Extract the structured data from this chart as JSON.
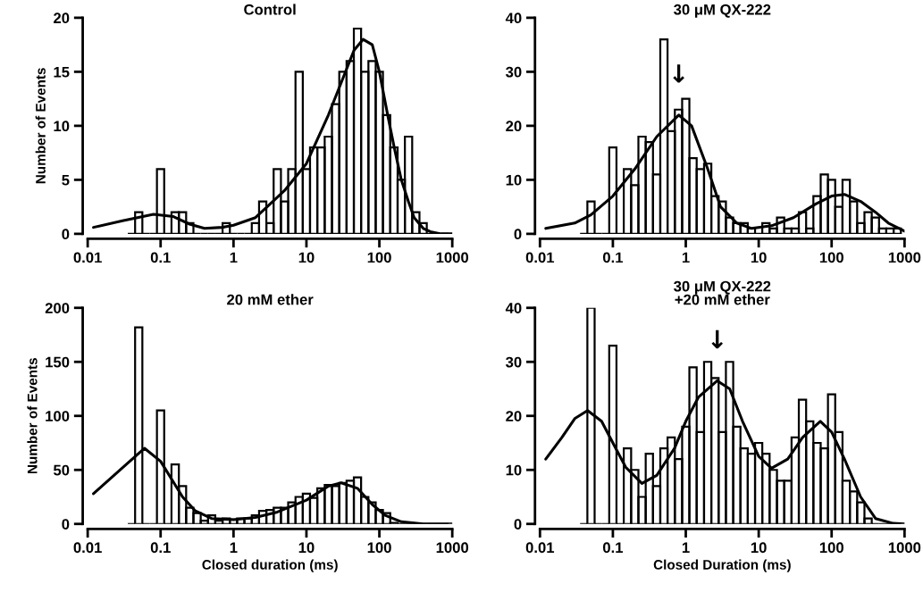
{
  "chart_data": [
    {
      "type": "histogram",
      "title": "Control",
      "ylabel": "Number of Events",
      "log": "x",
      "xlim": [
        0.01,
        1000
      ],
      "xticks": [
        0.01,
        0.1,
        1,
        10,
        100,
        1000
      ],
      "ylim": [
        0,
        20
      ],
      "yticks": [
        0,
        5,
        10,
        15,
        20
      ],
      "tick_labels": true,
      "color": "#000000",
      "bins": [
        0.0355,
        0.0447,
        0.0562,
        0.0708,
        0.0891,
        0.112,
        0.141,
        0.178,
        0.224,
        0.282,
        0.355,
        0.447,
        0.562,
        0.708,
        0.891,
        1.12,
        1.41,
        1.78,
        2.24,
        2.82,
        3.55,
        4.47,
        5.62,
        7.08,
        8.91,
        11.2,
        14.1,
        17.8,
        22.4,
        28.2,
        35.5,
        44.7,
        56.2,
        70.8,
        89.1,
        112,
        141,
        178,
        224,
        282,
        355,
        447,
        562,
        708,
        891
      ],
      "values": [
        0,
        2,
        0,
        0,
        6,
        0,
        2,
        2,
        1,
        0,
        0,
        0,
        0,
        1,
        0,
        0,
        0,
        1,
        3,
        1,
        6,
        3,
        6,
        15,
        6,
        8,
        8,
        9,
        12,
        15,
        16,
        19,
        15,
        16,
        15,
        11,
        8,
        5,
        9,
        2,
        1,
        0,
        0,
        0
      ],
      "series": [
        {
          "type": "line",
          "color": "#000000",
          "x": [
            0.012,
            0.03,
            0.08,
            0.15,
            0.25,
            0.4,
            0.7,
            1,
            2,
            3,
            5,
            10,
            20,
            30,
            45,
            60,
            80,
            100,
            130,
            160,
            200,
            250,
            300,
            400,
            500,
            700,
            1000
          ],
          "values": [
            0.6,
            1.2,
            1.8,
            1.6,
            0.9,
            0.5,
            0.6,
            0.8,
            1.5,
            2.6,
            4,
            6.5,
            11,
            14,
            17,
            18,
            17.5,
            15,
            11,
            8,
            5,
            3,
            1.5,
            0.5,
            0.2,
            0,
            0
          ]
        }
      ]
    },
    {
      "type": "histogram",
      "title": "30 μM QX-222",
      "log": "x",
      "xlim": [
        0.01,
        1000
      ],
      "xticks": [
        0.01,
        0.1,
        1,
        10,
        100,
        1000
      ],
      "ylim": [
        0,
        40
      ],
      "yticks": [
        0,
        10,
        20,
        30,
        40
      ],
      "color": "#000000",
      "annotations": [
        {
          "text": "↓",
          "x": 0.8,
          "y": 22
        }
      ],
      "bins": [
        0.0355,
        0.0447,
        0.0562,
        0.0708,
        0.0891,
        0.112,
        0.141,
        0.178,
        0.224,
        0.282,
        0.355,
        0.447,
        0.562,
        0.708,
        0.891,
        1.12,
        1.41,
        1.78,
        2.24,
        2.82,
        3.55,
        4.47,
        5.62,
        7.08,
        8.91,
        11.2,
        14.1,
        17.8,
        22.4,
        28.2,
        35.5,
        44.7,
        56.2,
        70.8,
        89.1,
        112,
        141,
        178,
        224,
        282,
        355,
        447,
        562,
        708,
        891
      ],
      "values": [
        0,
        6,
        0,
        0,
        16,
        0,
        12,
        9,
        18,
        17,
        11,
        36,
        19,
        23,
        25,
        14,
        12,
        13,
        7,
        6,
        3,
        2,
        2,
        1,
        0,
        2,
        1,
        3,
        1,
        1,
        4,
        1,
        7,
        11,
        10,
        5,
        10,
        6,
        2,
        4,
        3,
        1,
        1,
        1
      ],
      "series": [
        {
          "type": "line",
          "color": "#000000",
          "x": [
            0.012,
            0.03,
            0.05,
            0.1,
            0.2,
            0.4,
            0.8,
            1.2,
            2,
            3,
            5,
            8,
            15,
            30,
            60,
            100,
            150,
            250,
            400,
            600,
            1000
          ],
          "values": [
            1,
            2,
            3.5,
            7,
            12,
            18,
            22,
            20,
            12,
            5,
            2,
            1,
            1.5,
            3,
            5.5,
            7,
            7.3,
            6,
            4,
            2,
            0.5
          ]
        }
      ]
    },
    {
      "type": "histogram",
      "title": "20 mM ether",
      "xlabel": "Closed duration (ms)",
      "ylabel": "Number of Events",
      "log": "x",
      "xlim": [
        0.01,
        1000
      ],
      "xticks": [
        0.01,
        0.1,
        1,
        10,
        100,
        1000
      ],
      "ylim": [
        0,
        200
      ],
      "yticks": [
        0,
        50,
        100,
        150,
        200
      ],
      "color": "#000000",
      "bins": [
        0.0355,
        0.0447,
        0.0562,
        0.0708,
        0.0891,
        0.112,
        0.141,
        0.178,
        0.224,
        0.282,
        0.355,
        0.447,
        0.562,
        0.708,
        0.891,
        1.12,
        1.41,
        1.78,
        2.24,
        2.82,
        3.55,
        4.47,
        5.62,
        7.08,
        8.91,
        11.2,
        14.1,
        17.8,
        22.4,
        28.2,
        35.5,
        44.7,
        56.2,
        70.8,
        89.1,
        112,
        141,
        178,
        224,
        282,
        355,
        447,
        562,
        708,
        891
      ],
      "values": [
        0,
        182,
        0,
        0,
        105,
        0,
        55,
        35,
        15,
        10,
        3,
        8,
        3,
        5,
        4,
        5,
        5,
        8,
        12,
        13,
        15,
        15,
        20,
        25,
        28,
        24,
        33,
        36,
        35,
        38,
        40,
        43,
        25,
        20,
        13,
        10,
        1,
        0,
        0,
        0,
        0,
        0,
        0,
        0
      ],
      "series": [
        {
          "type": "line",
          "color": "#000000",
          "x": [
            0.012,
            0.03,
            0.06,
            0.1,
            0.2,
            0.3,
            0.5,
            1,
            2,
            4,
            10,
            20,
            30,
            50,
            80,
            120,
            200,
            400,
            1000
          ],
          "values": [
            28,
            52,
            70,
            58,
            25,
            12,
            5,
            4,
            6,
            11,
            22,
            35,
            38,
            33,
            18,
            8,
            2,
            0,
            0
          ]
        }
      ]
    },
    {
      "type": "histogram",
      "title": "30 μM QX-222\n+20 mM ether",
      "xlabel": "Closed Duration (ms)",
      "log": "x",
      "xlim": [
        0.01,
        1000
      ],
      "xticks": [
        0.01,
        0.1,
        1,
        10,
        100,
        1000
      ],
      "ylim": [
        0,
        40
      ],
      "yticks": [
        0,
        10,
        20,
        30,
        40
      ],
      "color": "#000000",
      "annotations": [
        {
          "text": "↓",
          "x": 2.7,
          "y": 26.5
        }
      ],
      "bins": [
        0.0355,
        0.0447,
        0.0562,
        0.0708,
        0.0891,
        0.112,
        0.141,
        0.178,
        0.224,
        0.282,
        0.355,
        0.447,
        0.562,
        0.708,
        0.891,
        1.12,
        1.41,
        1.78,
        2.24,
        2.82,
        3.55,
        4.47,
        5.62,
        7.08,
        8.91,
        11.2,
        14.1,
        17.8,
        22.4,
        28.2,
        35.5,
        44.7,
        56.2,
        70.8,
        89.1,
        112,
        141,
        178,
        224,
        282,
        355,
        447,
        562,
        708,
        891
      ],
      "values": [
        0,
        40,
        0,
        0,
        33,
        0,
        14,
        10,
        5,
        13,
        7,
        14,
        16,
        12,
        18,
        29,
        17,
        30,
        27,
        17,
        30,
        18,
        14,
        13,
        15,
        13,
        10,
        8,
        8,
        16,
        23,
        19,
        15,
        14,
        24,
        17,
        8,
        6,
        4,
        1,
        0,
        0,
        0,
        0
      ],
      "series": [
        {
          "type": "line",
          "color": "#000000",
          "x": [
            0.012,
            0.02,
            0.03,
            0.045,
            0.07,
            0.1,
            0.15,
            0.25,
            0.4,
            0.7,
            1,
            1.5,
            2.7,
            4,
            6,
            10,
            15,
            25,
            40,
            70,
            100,
            150,
            250,
            400,
            700,
            1000
          ],
          "values": [
            12,
            16,
            19.5,
            21,
            19,
            15,
            10.5,
            7.5,
            9,
            14,
            19,
            23.5,
            26.5,
            25,
            19,
            12.5,
            10.3,
            12,
            16,
            19,
            17,
            12,
            5,
            1,
            0.1,
            0
          ]
        }
      ]
    }
  ]
}
